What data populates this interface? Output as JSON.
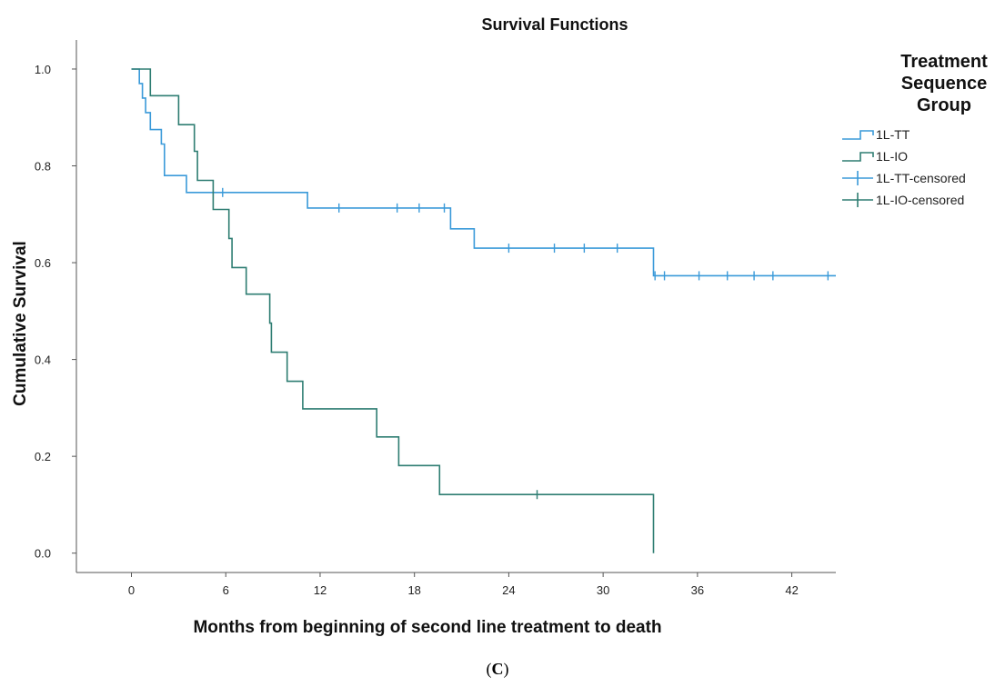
{
  "chart_data": {
    "type": "line",
    "title": "Survival Functions",
    "xlabel": "Months from beginning of second line treatment to death",
    "ylabel": "Cumulative Survival",
    "xlim": [
      -3.5,
      44.8
    ],
    "ylim": [
      -0.04,
      1.06
    ],
    "xticks": [
      0,
      6,
      12,
      18,
      24,
      30,
      36,
      42
    ],
    "yticks": [
      0.0,
      0.2,
      0.4,
      0.6,
      0.8,
      1.0
    ],
    "ytick_labels": [
      "0.0",
      "0.2",
      "0.4",
      "0.6",
      "0.8",
      "1.0"
    ],
    "grid": false,
    "legend_position": "top-right",
    "legend_title": "Treatment Sequence Group",
    "legend_title_lines": [
      "Treatment",
      "Sequence",
      "Group"
    ],
    "legend": [
      {
        "label": "1L-TT",
        "kind": "step",
        "color": "#3a9ad9"
      },
      {
        "label": "1L-IO",
        "kind": "step",
        "color": "#2e7d72"
      },
      {
        "label": "1L-TT-censored",
        "kind": "censor",
        "color": "#3a9ad9"
      },
      {
        "label": "1L-IO-censored",
        "kind": "censor",
        "color": "#2e7d72"
      }
    ],
    "series": [
      {
        "name": "1L-TT",
        "color": "#3a9ad9",
        "steps": [
          [
            0,
            1.0
          ],
          [
            0.5,
            0.97
          ],
          [
            0.7,
            0.94
          ],
          [
            0.9,
            0.91
          ],
          [
            1.2,
            0.875
          ],
          [
            1.9,
            0.845
          ],
          [
            2.1,
            0.78
          ],
          [
            3.5,
            0.745
          ],
          [
            11.2,
            0.713
          ],
          [
            20.3,
            0.67
          ],
          [
            21.8,
            0.63
          ],
          [
            33.2,
            0.573
          ],
          [
            44.8,
            0.573
          ]
        ],
        "censored": [
          [
            5.8,
            0.745
          ],
          [
            13.2,
            0.713
          ],
          [
            16.9,
            0.713
          ],
          [
            18.3,
            0.713
          ],
          [
            19.9,
            0.713
          ],
          [
            24.0,
            0.63
          ],
          [
            26.9,
            0.63
          ],
          [
            28.8,
            0.63
          ],
          [
            30.9,
            0.63
          ],
          [
            33.3,
            0.573
          ],
          [
            33.9,
            0.573
          ],
          [
            36.1,
            0.573
          ],
          [
            37.9,
            0.573
          ],
          [
            39.6,
            0.573
          ],
          [
            40.8,
            0.573
          ],
          [
            44.3,
            0.573
          ]
        ]
      },
      {
        "name": "1L-IO",
        "color": "#2e7d72",
        "steps": [
          [
            0,
            1.0
          ],
          [
            1.2,
            0.945
          ],
          [
            3.0,
            0.885
          ],
          [
            4.0,
            0.83
          ],
          [
            4.2,
            0.77
          ],
          [
            5.2,
            0.71
          ],
          [
            6.2,
            0.65
          ],
          [
            6.4,
            0.59
          ],
          [
            7.3,
            0.535
          ],
          [
            8.8,
            0.475
          ],
          [
            8.9,
            0.415
          ],
          [
            9.9,
            0.355
          ],
          [
            10.9,
            0.298
          ],
          [
            15.6,
            0.24
          ],
          [
            17.0,
            0.181
          ],
          [
            19.6,
            0.121
          ],
          [
            33.2,
            0.0
          ]
        ],
        "censored": [
          [
            25.8,
            0.121
          ]
        ]
      }
    ]
  },
  "caption": "(C)",
  "caption_parts": [
    "(",
    "C",
    ")"
  ]
}
